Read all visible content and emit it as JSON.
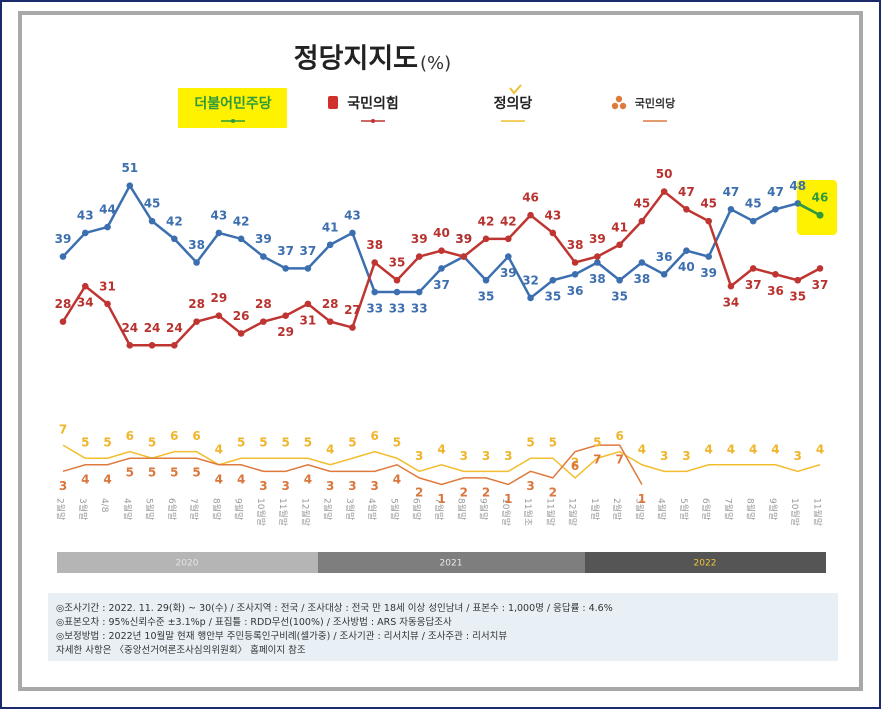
{
  "chart_data": {
    "type": "line",
    "title": "정당지지도",
    "title_unit": "(%)",
    "categories": [
      "2월말",
      "3월말",
      "4/8",
      "4월말",
      "5월말",
      "6월말",
      "7월말",
      "8월말",
      "9월말",
      "10월말",
      "11월말",
      "12월말",
      "2월말",
      "3월말",
      "4월말",
      "5월말",
      "6월말",
      "7월말",
      "8월말",
      "9월말",
      "10월말",
      "11월초",
      "11월말",
      "12월말",
      "1월말",
      "2월말",
      "3월말",
      "4월말",
      "5월말",
      "6월말",
      "7월말",
      "8월말",
      "9월말",
      "10월말",
      "11월말"
    ],
    "periods": [
      "2020",
      "2021",
      "2022"
    ],
    "ylim": [
      21,
      55
    ],
    "y2lim": [
      0,
      9
    ],
    "series": [
      {
        "name": "더불어민주당",
        "color": "#3c6fb0",
        "values": [
          39,
          43,
          44,
          51,
          45,
          42,
          38,
          43,
          42,
          39,
          37,
          37,
          41,
          43,
          33,
          33,
          33,
          37,
          39,
          35,
          39,
          32,
          35,
          36,
          38,
          35,
          38,
          36,
          40,
          39,
          47,
          45,
          47,
          48,
          46
        ]
      },
      {
        "name": "국민의힘",
        "color": "#bf3531",
        "values": [
          28,
          34,
          31,
          24,
          24,
          24,
          28,
          29,
          26,
          28,
          29,
          31,
          28,
          27,
          38,
          35,
          39,
          40,
          39,
          42,
          42,
          46,
          43,
          38,
          39,
          41,
          45,
          50,
          47,
          45,
          34,
          37,
          36,
          35,
          37
        ]
      },
      {
        "name": "정의당",
        "color": "#f2bd2e",
        "axis": "y2",
        "values": [
          7,
          5,
          5,
          6,
          5,
          6,
          6,
          4,
          5,
          5,
          5,
          5,
          4,
          5,
          6,
          5,
          3,
          4,
          3,
          3,
          3,
          5,
          5,
          2,
          5,
          6,
          4,
          3,
          3,
          4,
          4,
          4,
          4,
          3,
          4
        ]
      },
      {
        "name": "국민의당",
        "color": "#de7a3e",
        "axis": "y2",
        "values": [
          3,
          4,
          4,
          5,
          5,
          5,
          5,
          4,
          4,
          3,
          3,
          4,
          3,
          3,
          3,
          4,
          2,
          1,
          2,
          2,
          1,
          3,
          2,
          6,
          7,
          7,
          1,
          null,
          null,
          null,
          null,
          null,
          null,
          null,
          null
        ]
      }
    ],
    "notes": [
      "◎조사기간 : 2022. 11. 29(화) ~ 30(수) / 조사지역 : 전국 / 조사대상 : 전국 만 18세 이상 성인남녀 / 표본수 : 1,000명 / 응답률 : 4.6%",
      "◎표본오차 : 95%신뢰수준 ±3.1%p  / 표집틀 : RDD무선(100%) / 조사방법 : ARS 자동응답조사",
      "◎보정방법 : 2022년 10월말 현재 행안부 주민등록인구비례(셀가중) / 조사기관 : 리서치뷰 / 조사주관 : 리서치뷰",
      "자세한 사항은 〈중앙선거여론조사심의위원회〉 홈페이지 참조"
    ]
  }
}
